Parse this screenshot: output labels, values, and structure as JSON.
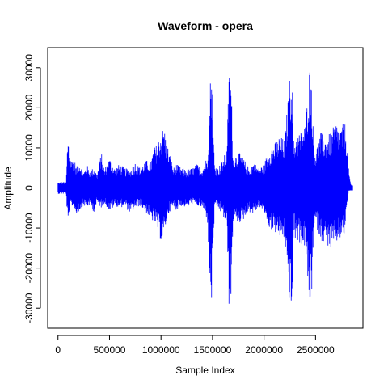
{
  "chart_data": {
    "type": "line",
    "title": "Waveform - opera",
    "xlabel": "Sample Index",
    "ylabel": "Amplitude",
    "xlim": [
      -100000,
      2960000
    ],
    "ylim": [
      -35000,
      35000
    ],
    "x_ticks": [
      0,
      500000,
      1000000,
      1500000,
      2000000,
      2500000
    ],
    "x_tick_labels": [
      "0",
      "500000",
      "1000000",
      "1500000",
      "2000000",
      "2500000"
    ],
    "y_ticks": [
      -30000,
      -20000,
      -10000,
      0,
      10000,
      20000,
      30000
    ],
    "y_tick_labels": [
      "-30000",
      "-20000",
      "-10000",
      "0",
      "10000",
      "20000",
      "30000"
    ],
    "grid": false,
    "series": [
      {
        "color": "#0000ff",
        "envelope": {
          "x": [
            0,
            80000,
            90000,
            100000,
            110000,
            130000,
            150000,
            180000,
            200000,
            250000,
            280000,
            300000,
            350000,
            380000,
            420000,
            450000,
            480000,
            500000,
            550000,
            600000,
            650000,
            700000,
            750000,
            800000,
            850000,
            900000,
            930000,
            960000,
            1000000,
            1030000,
            1050000,
            1080000,
            1120000,
            1150000,
            1200000,
            1250000,
            1300000,
            1350000,
            1400000,
            1450000,
            1480000,
            1490000,
            1500000,
            1520000,
            1550000,
            1600000,
            1640000,
            1660000,
            1680000,
            1700000,
            1750000,
            1800000,
            1850000,
            1900000,
            1950000,
            2000000,
            2050000,
            2100000,
            2150000,
            2200000,
            2250000,
            2270000,
            2290000,
            2300000,
            2350000,
            2400000,
            2440000,
            2460000,
            2480000,
            2500000,
            2550000,
            2600000,
            2650000,
            2700000,
            2750000,
            2780000,
            2800000,
            2820000,
            2840000,
            2860000
          ],
          "max": [
            1500,
            1500,
            10000,
            12500,
            9000,
            7000,
            8000,
            5000,
            7000,
            4000,
            6000,
            4500,
            5000,
            3500,
            9000,
            4500,
            6500,
            7500,
            5000,
            6000,
            5000,
            4500,
            6500,
            5000,
            7000,
            6500,
            10000,
            11000,
            14000,
            15500,
            12000,
            9000,
            5000,
            6000,
            5000,
            4500,
            5000,
            6000,
            5000,
            8000,
            28000,
            32500,
            20000,
            6000,
            5000,
            7000,
            10000,
            30000,
            28000,
            8000,
            9000,
            7500,
            5000,
            6500,
            5000,
            6000,
            10000,
            11000,
            13000,
            12000,
            28000,
            30500,
            9000,
            13000,
            14000,
            16000,
            30500,
            29000,
            12000,
            9000,
            14000,
            12500,
            14000,
            16500,
            15000,
            17000,
            14000,
            5000,
            1000,
            500
          ],
          "min": [
            -1500,
            -1500,
            -7000,
            -10000,
            -6000,
            -4500,
            -5000,
            -7000,
            -6000,
            -4500,
            -5000,
            -4500,
            -6000,
            -4000,
            -5000,
            -4000,
            -5000,
            -6000,
            -4500,
            -5000,
            -4500,
            -6500,
            -5000,
            -4500,
            -6000,
            -8000,
            -8500,
            -10000,
            -13500,
            -12500,
            -8500,
            -6000,
            -5000,
            -5500,
            -4500,
            -5000,
            -4000,
            -4500,
            -5000,
            -8000,
            -28000,
            -30500,
            -18000,
            -6000,
            -5000,
            -7000,
            -10000,
            -30000,
            -29000,
            -8000,
            -9000,
            -8000,
            -6000,
            -6500,
            -5000,
            -6000,
            -10000,
            -11000,
            -12500,
            -13000,
            -30000,
            -32000,
            -9000,
            -13000,
            -14000,
            -15000,
            -30500,
            -29000,
            -12000,
            -9000,
            -13000,
            -14000,
            -15500,
            -14000,
            -12500,
            -12000,
            -6000,
            -1000,
            -500,
            -500
          ]
        }
      }
    ]
  }
}
